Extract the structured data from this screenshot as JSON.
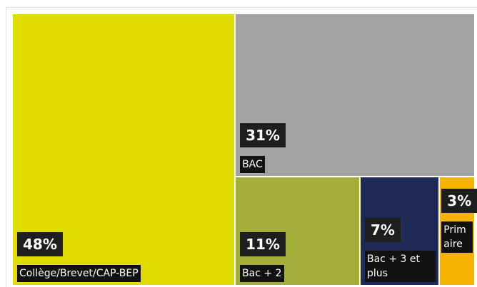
{
  "chart_data": {
    "type": "treemap",
    "categories": [
      "Collège/Brevet/CAP-BEP",
      "BAC",
      "Bac + 2",
      "Bac + 3 et plus",
      "Primaire"
    ],
    "values": [
      48,
      31,
      11,
      7,
      3
    ],
    "value_labels": [
      "48%",
      "31%",
      "11%",
      "7%",
      "3%"
    ],
    "colors": [
      "#e0dc00",
      "#a3a3a3",
      "#a3ae3b",
      "#1f2a56",
      "#f6b400"
    ]
  }
}
